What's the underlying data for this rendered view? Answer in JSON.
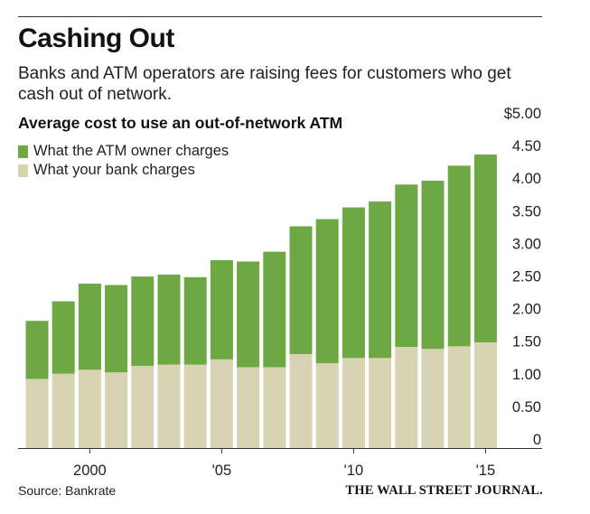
{
  "header": {
    "title": "Cashing Out",
    "subtitle": "Banks and ATM operators are raising fees for customers who get cash out of network.",
    "chart_title": "Average cost to use an out-of-network ATM"
  },
  "legend": [
    {
      "label": "What the ATM owner charges",
      "color": "#6ea845"
    },
    {
      "label": "What your bank charges",
      "color": "#d8d3b3"
    }
  ],
  "footer": {
    "source": "Source: Bankrate",
    "credit": "THE WALL STREET JOURNAL."
  },
  "chart_data": {
    "type": "bar",
    "stacked": true,
    "title": "Average cost to use an out-of-network ATM",
    "categories": [
      "1998",
      "1999",
      "2000",
      "2001",
      "2002",
      "2003",
      "2004",
      "2005",
      "2006",
      "2007",
      "2008",
      "2009",
      "2010",
      "2011",
      "2012",
      "2013",
      "2014",
      "2015"
    ],
    "series": [
      {
        "name": "What your bank charges",
        "color": "#d8d3b3",
        "values": [
          1.06,
          1.14,
          1.2,
          1.16,
          1.26,
          1.28,
          1.28,
          1.36,
          1.24,
          1.24,
          1.44,
          1.3,
          1.38,
          1.38,
          1.55,
          1.52,
          1.56,
          1.62
        ]
      },
      {
        "name": "What the ATM owner charges",
        "color": "#6ea845",
        "values": [
          0.89,
          1.11,
          1.32,
          1.34,
          1.37,
          1.38,
          1.34,
          1.52,
          1.62,
          1.77,
          1.96,
          2.21,
          2.31,
          2.4,
          2.49,
          2.58,
          2.77,
          2.88
        ]
      }
    ],
    "y_ticks": [
      "$5.00",
      "4.50",
      "4.00",
      "3.50",
      "3.00",
      "2.50",
      "2.00",
      "1.50",
      "1.00",
      "0.50",
      "0"
    ],
    "y_tick_values": [
      5.0,
      4.5,
      4.0,
      3.5,
      3.0,
      2.5,
      2.0,
      1.5,
      1.0,
      0.5,
      0
    ],
    "x_tick_labels": [
      {
        "category": "2000",
        "label": "2000"
      },
      {
        "category": "2005",
        "label": "'05"
      },
      {
        "category": "2010",
        "label": "'10"
      },
      {
        "category": "2015",
        "label": "'15"
      }
    ],
    "ylim": [
      0,
      5.0
    ],
    "xlabel": "",
    "ylabel": "",
    "grid": false,
    "legend_position": "top-left"
  }
}
